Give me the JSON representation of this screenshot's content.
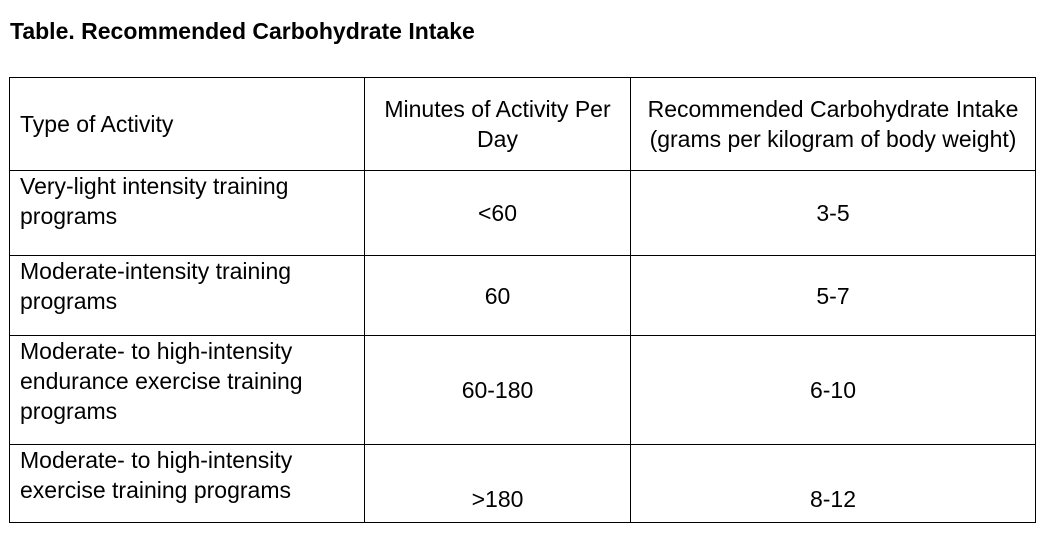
{
  "title": "Table. Recommended Carbohydrate Intake",
  "table": {
    "headers": [
      "Type of Activity",
      "Minutes of Activity Per Day",
      "Recommended Carbohydrate Intake (grams per kilogram of body weight)"
    ],
    "rows": [
      {
        "activity": "Very-light intensity training programs",
        "minutes": "<60",
        "intake": "3-5"
      },
      {
        "activity": "Moderate-intensity training programs",
        "minutes": "60",
        "intake": "5-7"
      },
      {
        "activity": "Moderate- to high-intensity endurance exercise training programs",
        "minutes": "60-180",
        "intake": "6-10"
      },
      {
        "activity": "Moderate- to high-intensity exercise training programs",
        "minutes": ">180",
        "intake": "8-12"
      }
    ]
  }
}
